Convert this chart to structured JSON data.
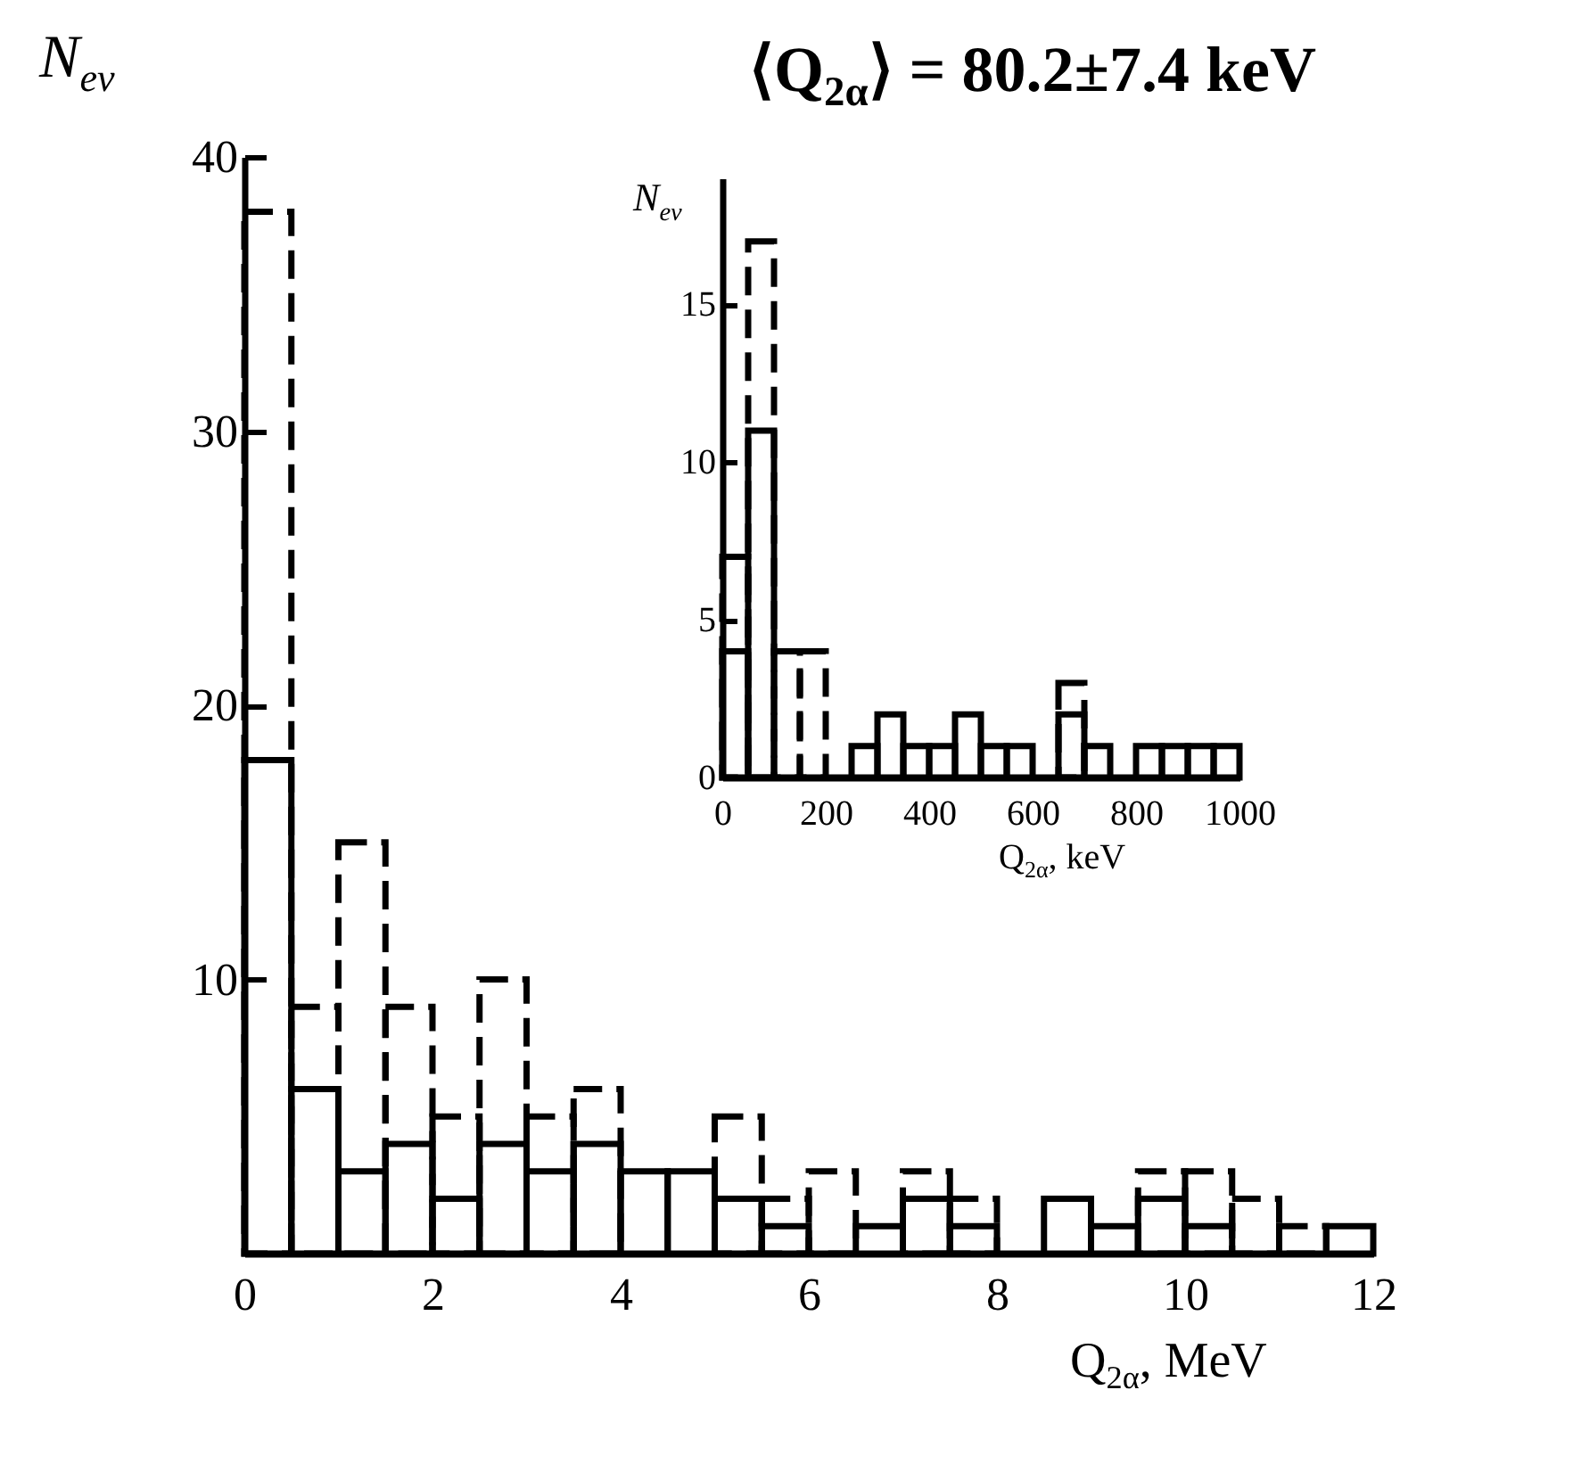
{
  "chart_data": [
    {
      "type": "histogram",
      "title": "⟨Q$_{2α}$⟩ = 80.2±7.4 keV",
      "xlabel": "Q$_{2α}$, MeV",
      "ylabel": "N$_{ev}$",
      "bins": [
        0,
        0.5,
        1,
        1.5,
        2,
        2.5,
        3,
        3.5,
        4,
        4.5,
        5,
        5.5,
        6,
        6.5,
        7,
        7.5,
        8,
        8.5,
        9,
        9.5,
        10,
        10.5,
        11,
        11.5,
        12
      ],
      "series": [
        {
          "color": "#000000",
          "line_style": "dashed",
          "values": [
            38,
            9,
            15,
            9,
            5,
            10,
            5,
            6,
            null,
            null,
            5,
            2,
            3,
            null,
            3,
            2,
            null,
            null,
            null,
            3,
            3,
            2,
            1,
            null
          ]
        },
        {
          "color": "#000000",
          "line_style": "solid",
          "values": [
            18,
            6,
            3,
            4,
            2,
            4,
            3,
            4,
            3,
            3,
            2,
            1,
            0,
            1,
            2,
            1,
            0,
            2,
            1,
            2,
            1,
            0,
            0,
            1
          ]
        }
      ],
      "xlim": [
        0,
        12
      ],
      "ylim": [
        0,
        40
      ],
      "xticks": [
        0,
        2,
        4,
        6,
        8,
        10,
        12
      ],
      "yticks": [
        10,
        20,
        30,
        40
      ]
    },
    {
      "type": "histogram",
      "xlabel": "Q$_{2α}$, keV",
      "ylabel": "N$_{ev}$",
      "bins": [
        0,
        50,
        100,
        150,
        200,
        250,
        300,
        350,
        400,
        450,
        500,
        550,
        600,
        650,
        700,
        750,
        800,
        850,
        900,
        950,
        1000
      ],
      "series": [
        {
          "color": "#000000",
          "line_style": "dashed",
          "values": [
            7,
            17,
            4,
            4,
            null,
            null,
            null,
            null,
            null,
            null,
            null,
            null,
            null,
            3,
            null,
            null,
            null,
            null,
            null,
            null
          ]
        },
        {
          "color": "#000000",
          "line_style": "solid",
          "values": [
            4,
            11,
            0,
            0,
            0,
            1,
            2,
            1,
            1,
            2,
            1,
            1,
            0,
            2,
            1,
            0,
            1,
            1,
            1,
            1
          ]
        }
      ],
      "xlim": [
        0,
        1000
      ],
      "ylim": [
        0,
        19
      ],
      "xticks": [
        0,
        200,
        400,
        600,
        800,
        1000
      ],
      "yticks": [
        0,
        5,
        10,
        15
      ]
    }
  ]
}
